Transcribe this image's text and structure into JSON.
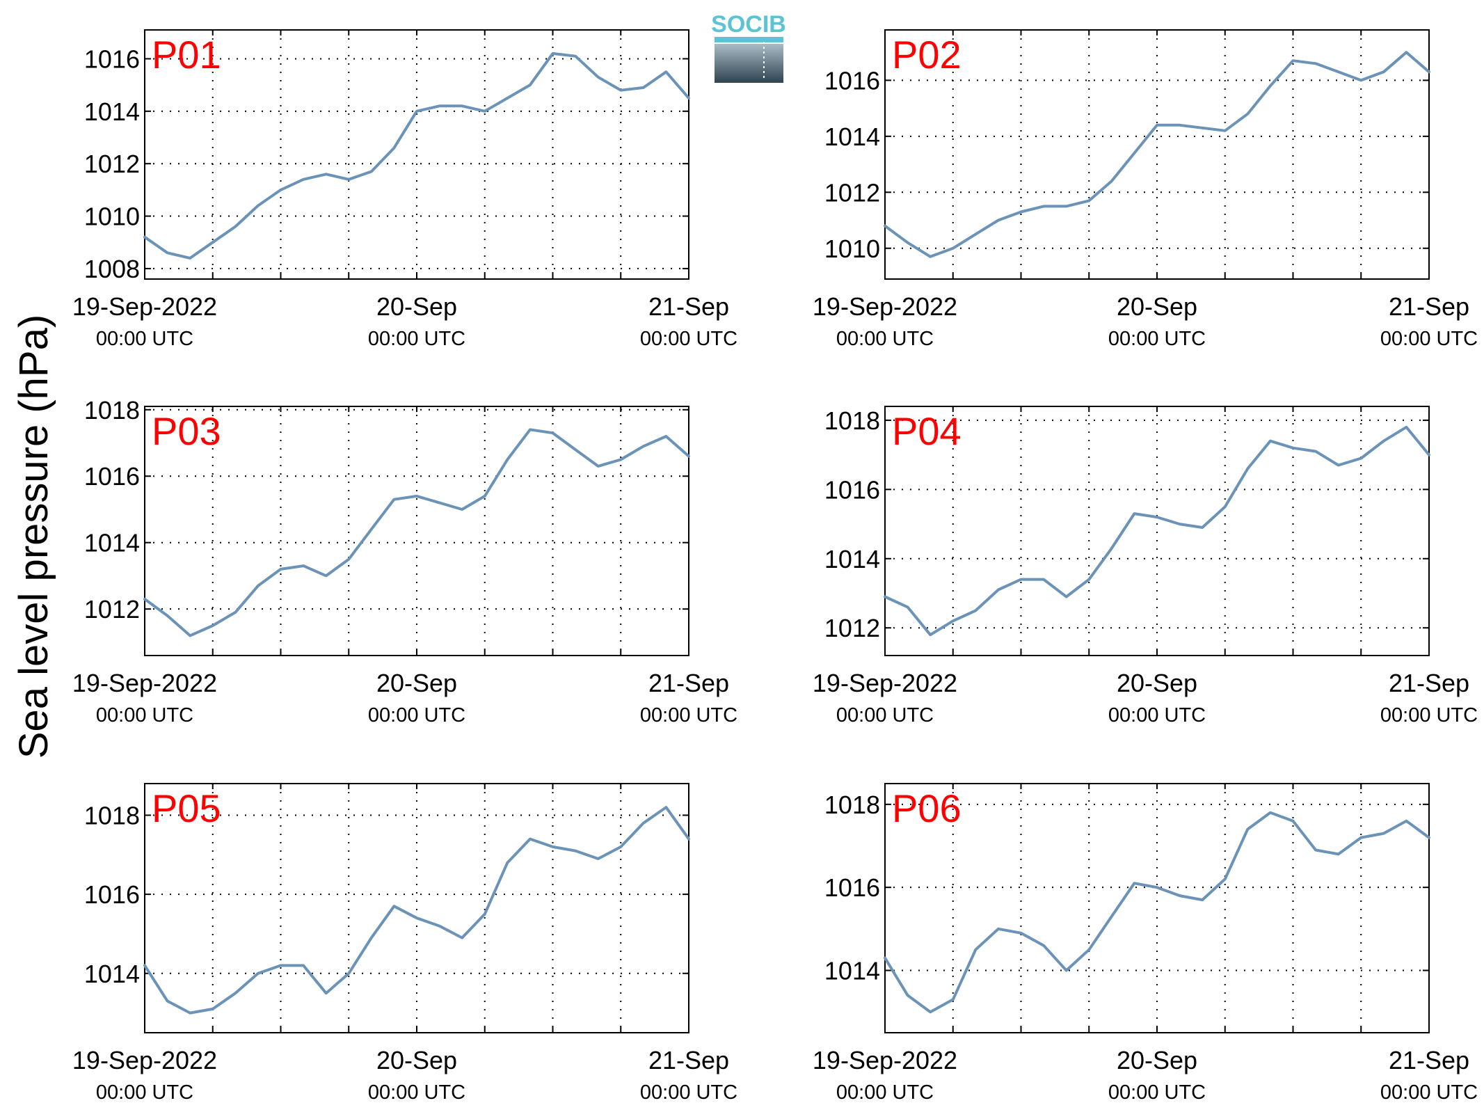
{
  "figure": {
    "ylabel": "Sea level pressure (hPa)",
    "logo_text": "SOCIB",
    "x_ticks": [
      {
        "date": "2022-09-19T00:00Z",
        "line1": "19-Sep-2022",
        "line2": "00:00 UTC"
      },
      {
        "date": "2022-09-20T00:00Z",
        "line1": "20-Sep",
        "line2": "00:00 UTC"
      },
      {
        "date": "2022-09-21T00:00Z",
        "line1": "21-Sep",
        "line2": "00:00 UTC"
      }
    ],
    "colors": {
      "line": "#6b93b8",
      "panel_label": "#ff0000",
      "grid": "#000000",
      "logo_top": "#5bc3d3",
      "logo_bottom": "#2e4350"
    }
  },
  "chart_data": [
    {
      "type": "line",
      "name": "P01",
      "xlim": [
        "2022-09-19T00:00Z",
        "2022-09-21T00:00Z"
      ],
      "ylim": [
        1007.6,
        1017.1
      ],
      "yticks": [
        1008,
        1010,
        1012,
        1014,
        1016
      ],
      "grid": true,
      "x": [
        "2022-09-19T00:00Z",
        "2022-09-19T02:00Z",
        "2022-09-19T04:00Z",
        "2022-09-19T06:00Z",
        "2022-09-19T08:00Z",
        "2022-09-19T10:00Z",
        "2022-09-19T12:00Z",
        "2022-09-19T14:00Z",
        "2022-09-19T16:00Z",
        "2022-09-19T18:00Z",
        "2022-09-19T20:00Z",
        "2022-09-19T22:00Z",
        "2022-09-20T00:00Z",
        "2022-09-20T02:00Z",
        "2022-09-20T04:00Z",
        "2022-09-20T06:00Z",
        "2022-09-20T08:00Z",
        "2022-09-20T10:00Z",
        "2022-09-20T12:00Z",
        "2022-09-20T14:00Z",
        "2022-09-20T16:00Z",
        "2022-09-20T18:00Z",
        "2022-09-20T20:00Z",
        "2022-09-20T22:00Z",
        "2022-09-21T00:00Z"
      ],
      "values": [
        1009.2,
        1008.6,
        1008.4,
        1009.0,
        1009.6,
        1010.4,
        1011.0,
        1011.4,
        1011.6,
        1011.4,
        1011.7,
        1012.6,
        1014.0,
        1014.2,
        1014.2,
        1014.0,
        1014.5,
        1015.0,
        1016.2,
        1016.1,
        1015.3,
        1014.8,
        1014.9,
        1015.5,
        1014.5
      ]
    },
    {
      "type": "line",
      "name": "P02",
      "xlim": [
        "2022-09-19T00:00Z",
        "2022-09-21T00:00Z"
      ],
      "ylim": [
        1008.9,
        1017.8
      ],
      "yticks": [
        1010,
        1012,
        1014,
        1016
      ],
      "grid": true,
      "x": [
        "2022-09-19T00:00Z",
        "2022-09-19T02:00Z",
        "2022-09-19T04:00Z",
        "2022-09-19T06:00Z",
        "2022-09-19T08:00Z",
        "2022-09-19T10:00Z",
        "2022-09-19T12:00Z",
        "2022-09-19T14:00Z",
        "2022-09-19T16:00Z",
        "2022-09-19T18:00Z",
        "2022-09-19T20:00Z",
        "2022-09-19T22:00Z",
        "2022-09-20T00:00Z",
        "2022-09-20T02:00Z",
        "2022-09-20T04:00Z",
        "2022-09-20T06:00Z",
        "2022-09-20T08:00Z",
        "2022-09-20T10:00Z",
        "2022-09-20T12:00Z",
        "2022-09-20T14:00Z",
        "2022-09-20T16:00Z",
        "2022-09-20T18:00Z",
        "2022-09-20T20:00Z",
        "2022-09-20T22:00Z",
        "2022-09-21T00:00Z"
      ],
      "values": [
        1010.8,
        1010.2,
        1009.7,
        1010.0,
        1010.5,
        1011.0,
        1011.3,
        1011.5,
        1011.5,
        1011.7,
        1012.4,
        1013.4,
        1014.4,
        1014.4,
        1014.3,
        1014.2,
        1014.8,
        1015.8,
        1016.7,
        1016.6,
        1016.3,
        1016.0,
        1016.3,
        1017.0,
        1016.3
      ]
    },
    {
      "type": "line",
      "name": "P03",
      "xlim": [
        "2022-09-19T00:00Z",
        "2022-09-21T00:00Z"
      ],
      "ylim": [
        1010.6,
        1018.1
      ],
      "yticks": [
        1012,
        1014,
        1016,
        1018
      ],
      "grid": true,
      "x": [
        "2022-09-19T00:00Z",
        "2022-09-19T02:00Z",
        "2022-09-19T04:00Z",
        "2022-09-19T06:00Z",
        "2022-09-19T08:00Z",
        "2022-09-19T10:00Z",
        "2022-09-19T12:00Z",
        "2022-09-19T14:00Z",
        "2022-09-19T16:00Z",
        "2022-09-19T18:00Z",
        "2022-09-19T20:00Z",
        "2022-09-19T22:00Z",
        "2022-09-20T00:00Z",
        "2022-09-20T02:00Z",
        "2022-09-20T04:00Z",
        "2022-09-20T06:00Z",
        "2022-09-20T08:00Z",
        "2022-09-20T10:00Z",
        "2022-09-20T12:00Z",
        "2022-09-20T14:00Z",
        "2022-09-20T16:00Z",
        "2022-09-20T18:00Z",
        "2022-09-20T20:00Z",
        "2022-09-20T22:00Z",
        "2022-09-21T00:00Z"
      ],
      "values": [
        1012.3,
        1011.8,
        1011.2,
        1011.5,
        1011.9,
        1012.7,
        1013.2,
        1013.3,
        1013.0,
        1013.5,
        1014.4,
        1015.3,
        1015.4,
        1015.2,
        1015.0,
        1015.4,
        1016.5,
        1017.4,
        1017.3,
        1016.8,
        1016.3,
        1016.5,
        1016.9,
        1017.2,
        1016.6
      ]
    },
    {
      "type": "line",
      "name": "P04",
      "xlim": [
        "2022-09-19T00:00Z",
        "2022-09-21T00:00Z"
      ],
      "ylim": [
        1011.2,
        1018.4
      ],
      "yticks": [
        1012,
        1014,
        1016,
        1018
      ],
      "grid": true,
      "x": [
        "2022-09-19T00:00Z",
        "2022-09-19T02:00Z",
        "2022-09-19T04:00Z",
        "2022-09-19T06:00Z",
        "2022-09-19T08:00Z",
        "2022-09-19T10:00Z",
        "2022-09-19T12:00Z",
        "2022-09-19T14:00Z",
        "2022-09-19T16:00Z",
        "2022-09-19T18:00Z",
        "2022-09-19T20:00Z",
        "2022-09-19T22:00Z",
        "2022-09-20T00:00Z",
        "2022-09-20T02:00Z",
        "2022-09-20T04:00Z",
        "2022-09-20T06:00Z",
        "2022-09-20T08:00Z",
        "2022-09-20T10:00Z",
        "2022-09-20T12:00Z",
        "2022-09-20T14:00Z",
        "2022-09-20T16:00Z",
        "2022-09-20T18:00Z",
        "2022-09-20T20:00Z",
        "2022-09-20T22:00Z",
        "2022-09-21T00:00Z"
      ],
      "values": [
        1012.9,
        1012.6,
        1011.8,
        1012.2,
        1012.5,
        1013.1,
        1013.4,
        1013.4,
        1012.9,
        1013.4,
        1014.3,
        1015.3,
        1015.2,
        1015.0,
        1014.9,
        1015.5,
        1016.6,
        1017.4,
        1017.2,
        1017.1,
        1016.7,
        1016.9,
        1017.4,
        1017.8,
        1017.0
      ]
    },
    {
      "type": "line",
      "name": "P05",
      "xlim": [
        "2022-09-19T00:00Z",
        "2022-09-21T00:00Z"
      ],
      "ylim": [
        1012.5,
        1018.8
      ],
      "yticks": [
        1014,
        1016,
        1018
      ],
      "grid": true,
      "x": [
        "2022-09-19T00:00Z",
        "2022-09-19T02:00Z",
        "2022-09-19T04:00Z",
        "2022-09-19T06:00Z",
        "2022-09-19T08:00Z",
        "2022-09-19T10:00Z",
        "2022-09-19T12:00Z",
        "2022-09-19T14:00Z",
        "2022-09-19T16:00Z",
        "2022-09-19T18:00Z",
        "2022-09-19T20:00Z",
        "2022-09-19T22:00Z",
        "2022-09-20T00:00Z",
        "2022-09-20T02:00Z",
        "2022-09-20T04:00Z",
        "2022-09-20T06:00Z",
        "2022-09-20T08:00Z",
        "2022-09-20T10:00Z",
        "2022-09-20T12:00Z",
        "2022-09-20T14:00Z",
        "2022-09-20T16:00Z",
        "2022-09-20T18:00Z",
        "2022-09-20T20:00Z",
        "2022-09-20T22:00Z",
        "2022-09-21T00:00Z"
      ],
      "values": [
        1014.2,
        1013.3,
        1013.0,
        1013.1,
        1013.5,
        1014.0,
        1014.2,
        1014.2,
        1013.5,
        1014.0,
        1014.9,
        1015.7,
        1015.4,
        1015.2,
        1014.9,
        1015.5,
        1016.8,
        1017.4,
        1017.2,
        1017.1,
        1016.9,
        1017.2,
        1017.8,
        1018.2,
        1017.4
      ]
    },
    {
      "type": "line",
      "name": "P06",
      "xlim": [
        "2022-09-19T00:00Z",
        "2022-09-21T00:00Z"
      ],
      "ylim": [
        1012.5,
        1018.5
      ],
      "yticks": [
        1014,
        1016,
        1018
      ],
      "grid": true,
      "x": [
        "2022-09-19T00:00Z",
        "2022-09-19T02:00Z",
        "2022-09-19T04:00Z",
        "2022-09-19T06:00Z",
        "2022-09-19T08:00Z",
        "2022-09-19T10:00Z",
        "2022-09-19T12:00Z",
        "2022-09-19T14:00Z",
        "2022-09-19T16:00Z",
        "2022-09-19T18:00Z",
        "2022-09-19T20:00Z",
        "2022-09-19T22:00Z",
        "2022-09-20T00:00Z",
        "2022-09-20T02:00Z",
        "2022-09-20T04:00Z",
        "2022-09-20T06:00Z",
        "2022-09-20T08:00Z",
        "2022-09-20T10:00Z",
        "2022-09-20T12:00Z",
        "2022-09-20T14:00Z",
        "2022-09-20T16:00Z",
        "2022-09-20T18:00Z",
        "2022-09-20T20:00Z",
        "2022-09-20T22:00Z",
        "2022-09-21T00:00Z"
      ],
      "values": [
        1014.3,
        1013.4,
        1013.0,
        1013.3,
        1014.5,
        1015.0,
        1014.9,
        1014.6,
        1014.0,
        1014.5,
        1015.3,
        1016.1,
        1016.0,
        1015.8,
        1015.7,
        1016.2,
        1017.4,
        1017.8,
        1017.6,
        1016.9,
        1016.8,
        1017.2,
        1017.3,
        1017.6,
        1017.2
      ]
    }
  ]
}
